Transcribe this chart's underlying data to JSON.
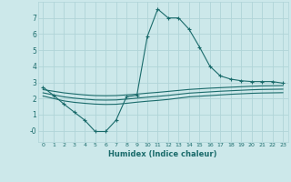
{
  "xlabel": "Humidex (Indice chaleur)",
  "x_ticks": [
    0,
    1,
    2,
    3,
    4,
    5,
    6,
    7,
    8,
    9,
    10,
    11,
    12,
    13,
    14,
    15,
    16,
    17,
    18,
    19,
    20,
    21,
    22,
    23
  ],
  "ylim": [
    -0.7,
    8.0
  ],
  "xlim": [
    -0.5,
    23.5
  ],
  "bg_color": "#cce8ea",
  "grid_color": "#b0d4d8",
  "line_color": "#1a6b6b",
  "line1_x": [
    0,
    1,
    2,
    3,
    4,
    5,
    6,
    7,
    8,
    9,
    10,
    11,
    12,
    13,
    14,
    15,
    16,
    17,
    18,
    19,
    20,
    21,
    22,
    23
  ],
  "line1_y": [
    2.7,
    2.2,
    1.65,
    1.15,
    0.65,
    -0.05,
    -0.05,
    0.65,
    2.1,
    2.2,
    5.85,
    7.55,
    7.0,
    7.0,
    6.3,
    5.2,
    4.0,
    3.4,
    3.2,
    3.1,
    3.05,
    3.05,
    3.05,
    2.95
  ],
  "line2_x": [
    0,
    1,
    2,
    3,
    4,
    5,
    6,
    7,
    8,
    9,
    10,
    11,
    12,
    13,
    14,
    15,
    16,
    17,
    18,
    19,
    20,
    21,
    22,
    23
  ],
  "line2_y": [
    2.55,
    2.45,
    2.35,
    2.28,
    2.22,
    2.18,
    2.17,
    2.18,
    2.22,
    2.27,
    2.33,
    2.38,
    2.44,
    2.5,
    2.56,
    2.6,
    2.64,
    2.67,
    2.7,
    2.73,
    2.76,
    2.78,
    2.79,
    2.8
  ],
  "line3_x": [
    0,
    1,
    2,
    3,
    4,
    5,
    6,
    7,
    8,
    9,
    10,
    11,
    12,
    13,
    14,
    15,
    16,
    17,
    18,
    19,
    20,
    21,
    22,
    23
  ],
  "line3_y": [
    2.35,
    2.22,
    2.1,
    2.02,
    1.96,
    1.91,
    1.9,
    1.91,
    1.96,
    2.02,
    2.08,
    2.13,
    2.19,
    2.26,
    2.33,
    2.37,
    2.41,
    2.45,
    2.48,
    2.51,
    2.54,
    2.56,
    2.57,
    2.58
  ],
  "line4_x": [
    0,
    1,
    2,
    3,
    4,
    5,
    6,
    7,
    8,
    9,
    10,
    11,
    12,
    13,
    14,
    15,
    16,
    17,
    18,
    19,
    20,
    21,
    22,
    23
  ],
  "line4_y": [
    2.15,
    2.0,
    1.85,
    1.76,
    1.7,
    1.65,
    1.63,
    1.64,
    1.7,
    1.77,
    1.83,
    1.88,
    1.94,
    2.02,
    2.1,
    2.14,
    2.18,
    2.22,
    2.26,
    2.29,
    2.32,
    2.34,
    2.35,
    2.36
  ],
  "yticks": [
    0,
    1,
    2,
    3,
    4,
    5,
    6,
    7
  ],
  "ytick_labels": [
    "-0",
    "1",
    "2",
    "3",
    "4",
    "5",
    "6",
    "7"
  ]
}
